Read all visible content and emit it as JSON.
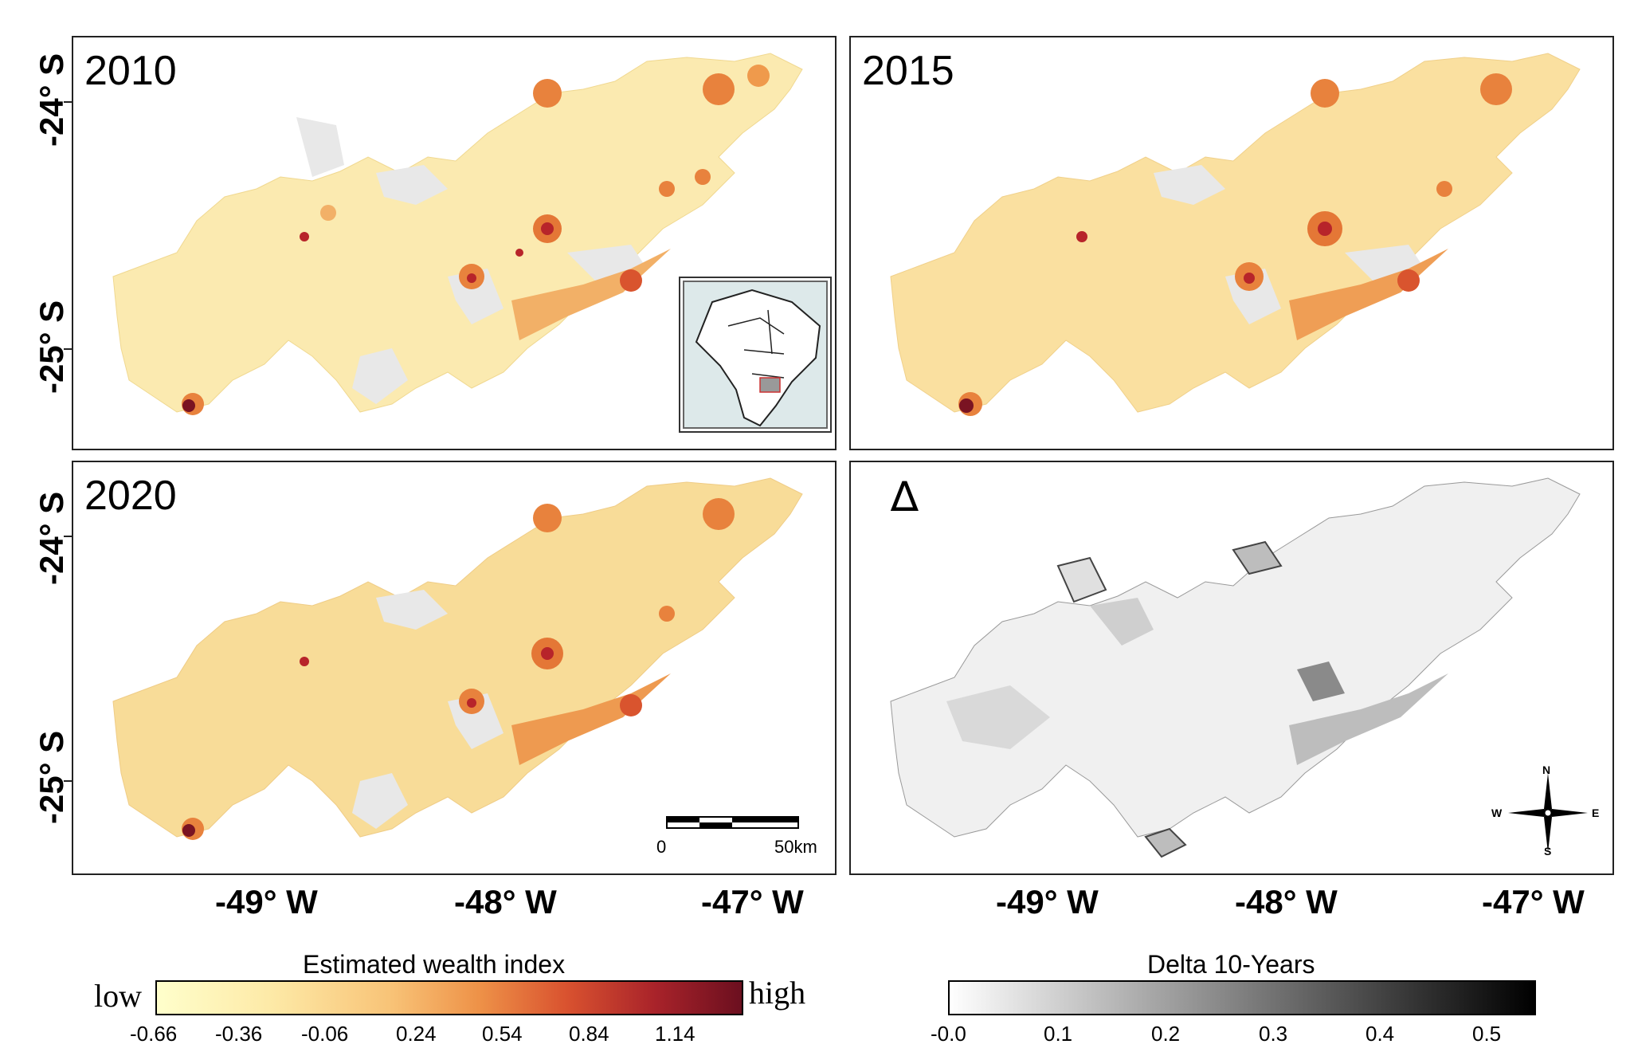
{
  "panels": [
    {
      "label": "2010",
      "kind": "wealth"
    },
    {
      "label": "2015",
      "kind": "wealth"
    },
    {
      "label": "2020",
      "kind": "wealth"
    },
    {
      "label": "∆",
      "kind": "delta"
    }
  ],
  "axes": {
    "lat_labels": [
      "-24° S",
      "-25° S"
    ],
    "lon_labels": [
      "-49° W",
      "-48° W",
      "-47° W"
    ]
  },
  "scale_bar": {
    "start": "0",
    "end": "50km"
  },
  "compass": {
    "n": "N",
    "s": "S",
    "e": "E",
    "w": "W"
  },
  "legend_wealth": {
    "title": "Estimated wealth index",
    "low": "low",
    "high": "high",
    "ticks": [
      "-0.66",
      "-0.36",
      "-0.06",
      "0.24",
      "0.54",
      "0.84",
      "1.14"
    ],
    "colors": [
      "#ffffcc",
      "#fde49c",
      "#f6b868",
      "#e8803f",
      "#cf4a2c",
      "#a21f28",
      "#6b0f1f"
    ]
  },
  "legend_delta": {
    "title": "Delta 10-Years",
    "ticks": [
      "-0.0",
      "0.1",
      "0.2",
      "0.3",
      "0.4",
      "0.5"
    ],
    "colors": [
      "#ffffff",
      "#000000"
    ]
  }
}
